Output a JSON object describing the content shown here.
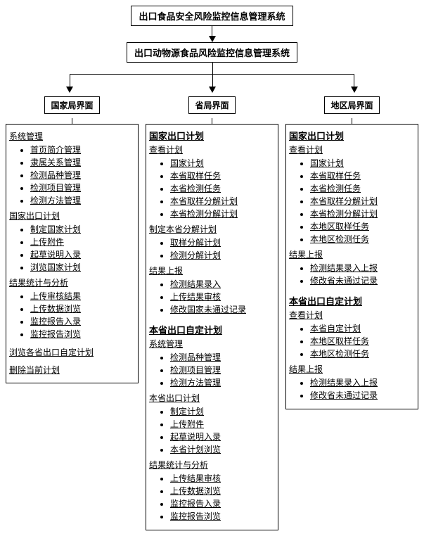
{
  "type": "tree",
  "colors": {
    "border": "#000000",
    "text": "#000000",
    "bg": "#ffffff"
  },
  "root": {
    "label": "出口食品安全风险监控信息管理系统"
  },
  "level2": {
    "label": "出口动物源食品风险监控信息管理系统"
  },
  "columns": [
    {
      "header": "国家局界面",
      "groups": [
        {
          "title": "系统管理",
          "bold": false,
          "items": [
            "首页简介管理",
            "隶属关系管理",
            "检测品种管理",
            "检测项目管理",
            "检测方法管理"
          ]
        },
        {
          "title": "国家出口计划",
          "bold": false,
          "items": [
            "制定国家计划",
            "上传附件",
            "起草说明入录",
            "浏览国家计划"
          ]
        },
        {
          "title": "结果统计与分析",
          "bold": false,
          "items": [
            "上传审核结果",
            "上传数据浏览",
            "监控报告入录",
            "监控报告浏览"
          ]
        }
      ],
      "standalone": [
        "浏览各省出口自定计划",
        "删除当前计划"
      ]
    },
    {
      "header": "省局界面",
      "groups": [
        {
          "title": "国家出口计划",
          "bold": true,
          "items": []
        },
        {
          "title": "查看计划",
          "bold": false,
          "items": [
            "国家计划",
            "本省取样任务",
            "本省检测任务",
            "本省取样分解计划",
            "本省检测分解计划"
          ]
        },
        {
          "title": "制定本省分解计划",
          "bold": false,
          "items": [
            "取样分解计划",
            "检测分解计划"
          ]
        },
        {
          "title": "结果上报",
          "bold": false,
          "items": [
            "检测结果录入",
            "上传结果审核",
            "修改国家未通过记录"
          ]
        },
        {
          "title": "本省出口自定计划",
          "bold": true,
          "items": []
        },
        {
          "title": "系统管理",
          "bold": false,
          "items": [
            "检测品种管理",
            "检测项目管理",
            "检测方法管理"
          ]
        },
        {
          "title": "本省出口计划",
          "bold": false,
          "items": [
            "制定计划",
            "上传附件",
            "起草说明入录",
            "本省计划浏览"
          ]
        },
        {
          "title": "结果统计与分析",
          "bold": false,
          "items": [
            "上传结果审核",
            "上传数据浏览",
            "监控报告入录",
            "监控报告浏览"
          ]
        }
      ],
      "standalone": []
    },
    {
      "header": "地区局界面",
      "groups": [
        {
          "title": "国家出口计划",
          "bold": true,
          "items": []
        },
        {
          "title": "查看计划",
          "bold": false,
          "items": [
            "国家计划",
            "本省取样任务",
            "本省检测任务",
            "本省取样分解计划",
            "本省检测分解计划",
            "本地区取样任务",
            "本地区检测任务"
          ]
        },
        {
          "title": "结果上报",
          "bold": false,
          "items": [
            "检测结果录入上报",
            "修改省未通过记录"
          ]
        },
        {
          "title": "本省出口自定计划",
          "bold": true,
          "items": []
        },
        {
          "title": "查看计划",
          "bold": false,
          "items": [
            "本省自定计划",
            "本地区取样任务",
            "本地区检测任务"
          ]
        },
        {
          "title": "结果上报",
          "bold": false,
          "items": [
            "检测结果录入上报",
            "修改省未通过记录"
          ]
        }
      ],
      "standalone": []
    }
  ]
}
